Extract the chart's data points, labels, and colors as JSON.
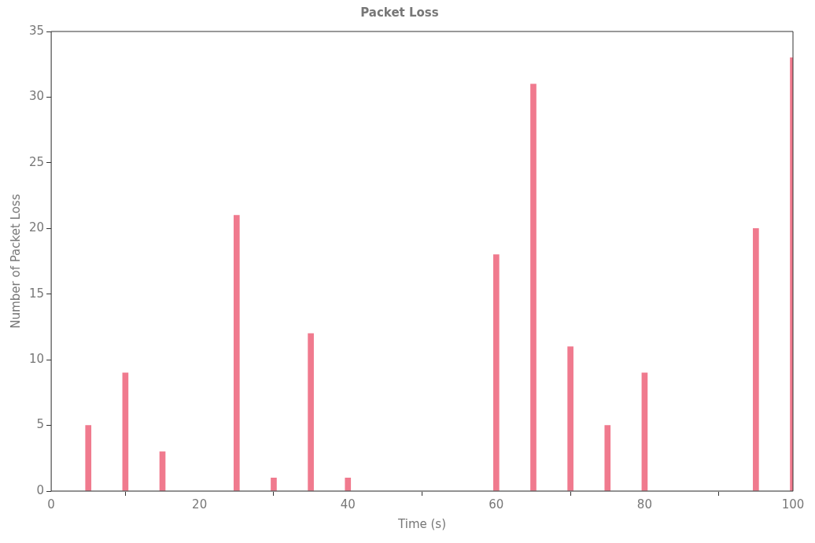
{
  "chart_data": {
    "type": "bar",
    "title": "Packet Loss",
    "xlabel": "Time (s)",
    "ylabel": "Number of Packet Loss",
    "x": [
      5,
      10,
      15,
      25,
      30,
      35,
      40,
      60,
      65,
      70,
      75,
      80,
      95,
      100
    ],
    "values": [
      5,
      9,
      3,
      21,
      1,
      12,
      1,
      18,
      31,
      11,
      5,
      9,
      20,
      33
    ],
    "color": "#f07a8e",
    "xlim": [
      0,
      100
    ],
    "xticks": [
      0,
      20,
      40,
      60,
      80,
      100
    ],
    "ylim": [
      0,
      35
    ],
    "yticks": [
      0,
      5,
      10,
      15,
      20,
      25,
      30,
      35
    ],
    "grid": false,
    "legend": false
  }
}
